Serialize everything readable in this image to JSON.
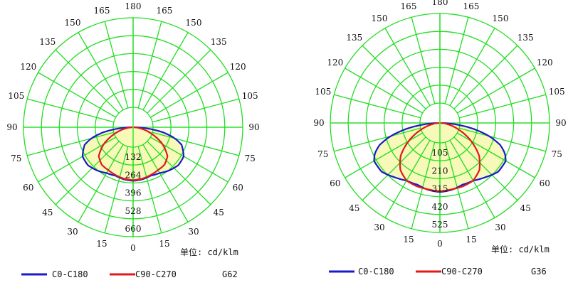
{
  "colors": {
    "grid": "#22dd22",
    "fill": "#f6f9b8",
    "series_c0": "#1a1ac8",
    "series_c90": "#e01a1a",
    "text": "#111111"
  },
  "chart_data": [
    {
      "type": "polar",
      "title": "",
      "code": "G62",
      "unit_label": "单位: cd/klm",
      "rmax": 660,
      "radial_ticks": [
        "132",
        "264",
        "396",
        "528",
        "660"
      ],
      "angle_labels": {
        "left": [
          "165",
          "150",
          "135",
          "120",
          "105",
          "90",
          "75",
          "60",
          "45",
          "30",
          "15"
        ],
        "right": [
          "165",
          "150",
          "135",
          "120",
          "105",
          "90",
          "75",
          "60",
          "45",
          "30",
          "15"
        ],
        "top": "180",
        "bottom": "0"
      },
      "series": [
        {
          "name": "C0-C180",
          "angles": [
            0,
            10,
            20,
            30,
            40,
            50,
            60,
            70,
            75,
            80,
            85,
            90
          ],
          "values": [
            395,
            390,
            380,
            390,
            415,
            435,
            430,
            380,
            320,
            230,
            110,
            5
          ]
        },
        {
          "name": "C90-C270",
          "angles": [
            0,
            10,
            20,
            30,
            40,
            50,
            60,
            70,
            80,
            90
          ],
          "values": [
            390,
            385,
            375,
            365,
            360,
            330,
            250,
            150,
            60,
            5
          ]
        }
      ]
    },
    {
      "type": "polar",
      "title": "",
      "code": "G36",
      "unit_label": "单位: cd/klm",
      "rmax": 525,
      "radial_ticks": [
        "105",
        "210",
        "315",
        "420",
        "525"
      ],
      "angle_labels": {
        "left": [
          "165",
          "150",
          "135",
          "120",
          "105",
          "90",
          "75",
          "60",
          "45",
          "30",
          "15"
        ],
        "right": [
          "165",
          "150",
          "135",
          "120",
          "105",
          "90",
          "75",
          "60",
          "45",
          "30",
          "15"
        ],
        "top": "180",
        "bottom": "0"
      },
      "series": [
        {
          "name": "C0-C180",
          "angles": [
            0,
            10,
            20,
            30,
            40,
            50,
            60,
            65,
            70,
            75,
            80,
            85,
            90
          ],
          "values": [
            405,
            398,
            385,
            390,
            415,
            445,
            445,
            420,
            375,
            300,
            200,
            90,
            5
          ]
        },
        {
          "name": "C90-C270",
          "angles": [
            0,
            10,
            20,
            30,
            40,
            50,
            60,
            70,
            80,
            90
          ],
          "values": [
            400,
            395,
            395,
            390,
            360,
            300,
            210,
            120,
            50,
            5
          ]
        }
      ]
    }
  ]
}
